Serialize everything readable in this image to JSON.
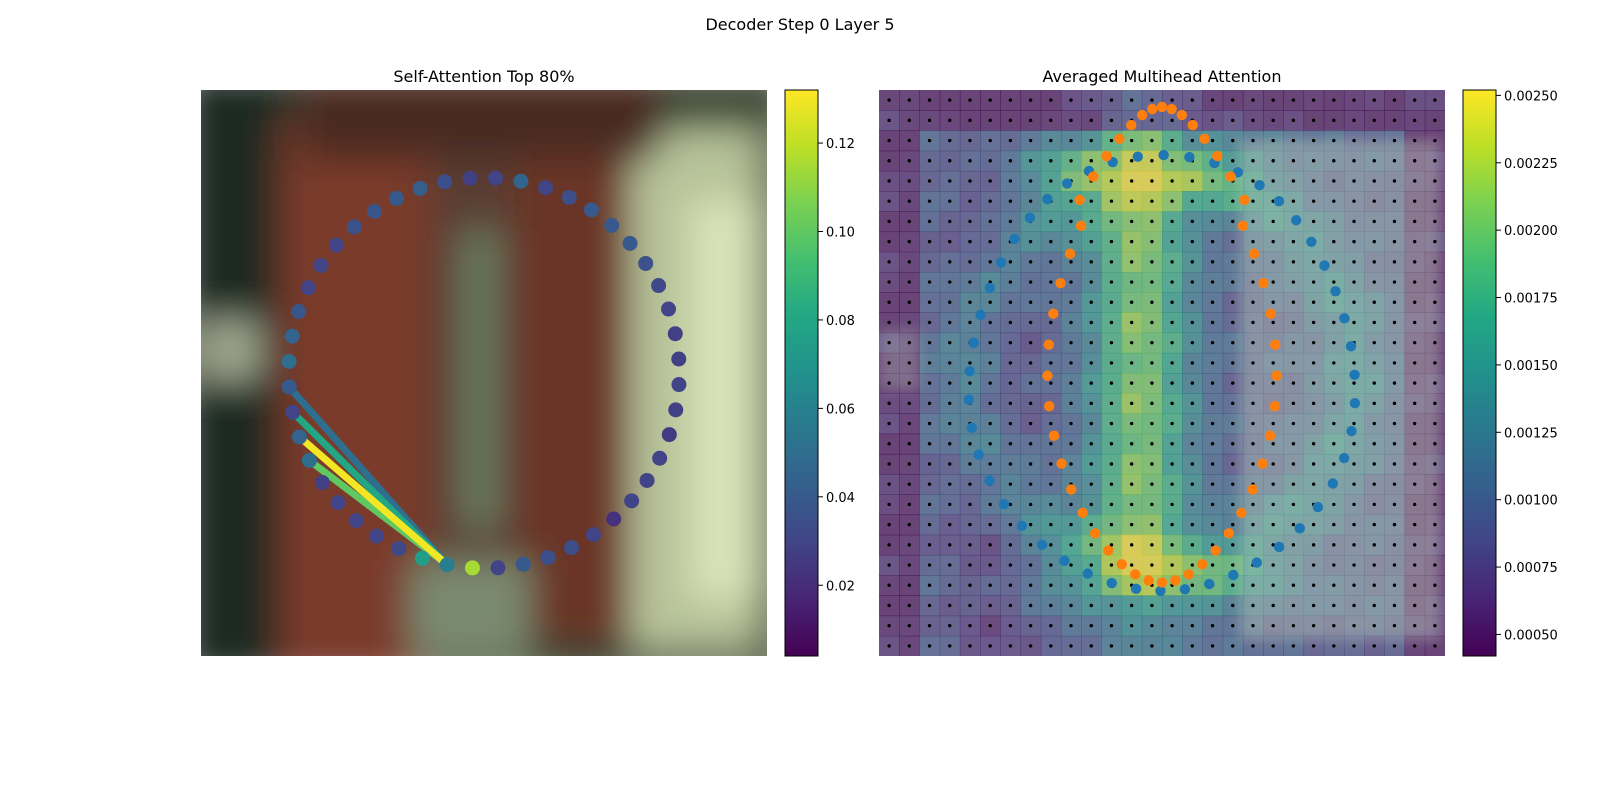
{
  "figure": {
    "suptitle": "Decoder Step 0 Layer 5"
  },
  "chart_data": [
    {
      "type": "scatter",
      "title": "Self-Attention Top 80%",
      "background": "blurred photograph",
      "colormap": "viridis",
      "colorbar": {
        "ticks": [
          0.02,
          0.04,
          0.06,
          0.08,
          0.1,
          0.12
        ],
        "tick_labels": [
          "0.02",
          "0.04",
          "0.06",
          "0.08",
          "0.10",
          "0.12"
        ],
        "range": [
          0.004,
          0.132
        ]
      },
      "points": {
        "count": 48,
        "center": [
          0.5,
          0.5
        ],
        "radius": 0.345,
        "values": [
          0.058,
          0.115,
          0.03,
          0.04,
          0.035,
          0.035,
          0.03,
          0.022,
          0.03,
          0.03,
          0.03,
          0.026,
          0.028,
          0.03,
          0.028,
          0.028,
          0.03,
          0.032,
          0.036,
          0.04,
          0.04,
          0.04,
          0.035,
          0.03,
          0.045,
          0.03,
          0.028,
          0.035,
          0.042,
          0.04,
          0.038,
          0.036,
          0.03,
          0.03,
          0.03,
          0.038,
          0.045,
          0.05,
          0.04,
          0.03,
          0.045,
          0.05,
          0.028,
          0.03,
          0.03,
          0.03,
          0.032,
          0.075
        ]
      },
      "attention_lines": [
        {
          "from": 0,
          "to": 38,
          "value": 0.05
        },
        {
          "from": 0,
          "to": 39,
          "value": 0.08
        },
        {
          "from": 0,
          "to": 40,
          "value": 0.13
        },
        {
          "from": 0,
          "to": 41,
          "value": 0.1
        }
      ]
    },
    {
      "type": "heatmap",
      "title": "Averaged Multihead Attention",
      "colormap": "viridis",
      "grid_cells": 28,
      "colorbar": {
        "ticks": [
          0.0005,
          0.00075,
          0.001,
          0.00125,
          0.0015,
          0.00175,
          0.002,
          0.00225,
          0.0025
        ],
        "tick_labels": [
          "0.00050",
          "0.00075",
          "0.00100",
          "0.00125",
          "0.00150",
          "0.00175",
          "0.00200",
          "0.00225",
          "0.00250"
        ],
        "range": [
          0.00042,
          0.00252
        ]
      },
      "series": [
        {
          "color": "#1f77b4",
          "count": 48,
          "shape": "ring",
          "center": [
            0.5,
            0.5
          ],
          "radius": 0.34
        },
        {
          "color": "#ff7f0e",
          "count": 48,
          "shape": "letter",
          "center": [
            0.5,
            0.5
          ]
        }
      ]
    }
  ],
  "colors": {
    "series_blue": "#1f77b4",
    "series_orange": "#ff7f0e",
    "grid_dot": "#000000"
  }
}
